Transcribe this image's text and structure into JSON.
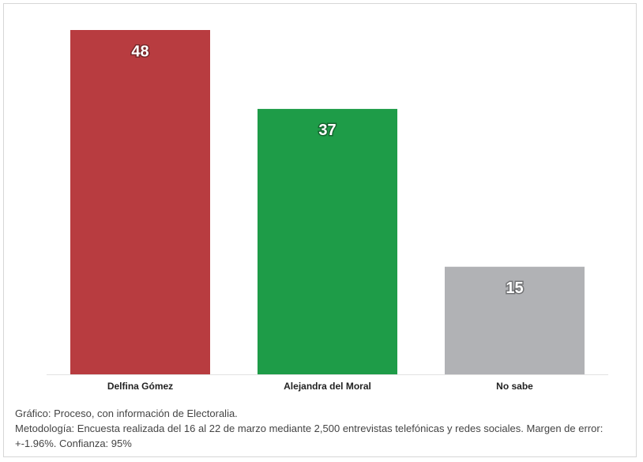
{
  "chart_data": {
    "type": "bar",
    "categories": [
      "Delfina Gómez",
      "Alejandra del Moral",
      "No sabe"
    ],
    "values": [
      48,
      37,
      15
    ],
    "colors": [
      "#b83c40",
      "#1e9c48",
      "#b1b2b5"
    ],
    "source": "Gráfico: Proceso, con información de Electoralia.",
    "methodology": "Metodología: Encuesta realizada del 16 al 22 de marzo mediante 2,500 entrevistas telefónicas y redes sociales. Margen de error: +-1.96%. Confianza: 95%"
  }
}
